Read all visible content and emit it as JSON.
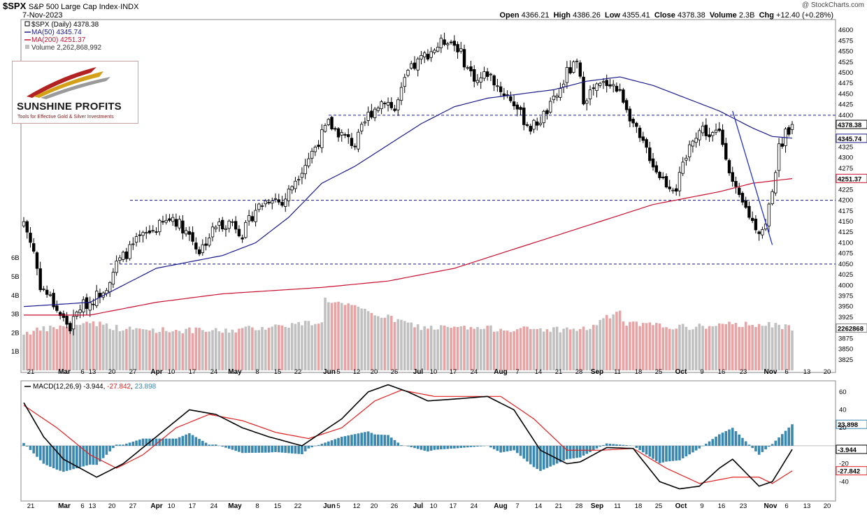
{
  "header": {
    "symbol": "$SPX",
    "name": "S&P 500 Large Cap Index",
    "exchange": "INDX",
    "date": "7-Nov-2023",
    "open_label": "Open",
    "open": "4366.21",
    "high_label": "High",
    "high": "4386.26",
    "low_label": "Low",
    "low": "4355.41",
    "close_label": "Close",
    "close": "4378.38",
    "volume_label": "Volume",
    "volume": "2.3B",
    "chg_label": "Chg",
    "chg": "+12.40 (+0.28%)",
    "watermark": "@ StockCharts.com"
  },
  "legend": {
    "price": "$SPX (Daily) 4378.38",
    "ma50": "MA(50) 4345.74",
    "ma200": "MA(200) 4251.37",
    "volume": "Volume 2,262,868,992"
  },
  "logo": {
    "name": "SUNSHINE PROFITS",
    "tagline": "Tools for Effective Gold & Silver Investments"
  },
  "macd_legend": {
    "label": "MACD(12,26,9)",
    "macd": "-3.944",
    "signal": "-27.842",
    "hist": "23.898"
  },
  "tags": {
    "close": "4378.38",
    "ma50": "4345.74",
    "ma200": "4251.37",
    "volume": "2262868",
    "hist": "23.898",
    "macd": "-3.944",
    "signal": "-27.842"
  },
  "colors": {
    "up": "#ffffff",
    "down": "#000000",
    "ma50": "#1a1a8c",
    "ma200": "#c8102e",
    "vol_up": "#c0c0c0",
    "vol_down": "#e8a4a4",
    "macd": "#000000",
    "signal": "#e02020",
    "hist": "#3a87b0",
    "level": "#1a1a8c",
    "trend": "#2233cc"
  },
  "chart_data": {
    "type": "candlestick",
    "title": "$SPX S&P 500 Large Cap Index",
    "period": "Daily",
    "ylim": [
      3800,
      4620
    ],
    "y_ticks": [
      3825,
      3850,
      3875,
      3900,
      3925,
      3950,
      3975,
      4000,
      4025,
      4050,
      4075,
      4100,
      4125,
      4150,
      4175,
      4200,
      4225,
      4250,
      4275,
      4300,
      4325,
      4350,
      4375,
      4400,
      4425,
      4450,
      4475,
      4500,
      4525,
      4550,
      4575,
      4600
    ],
    "volume_ticks": [
      "1B",
      "2B",
      "3B",
      "4B",
      "5B",
      "6B"
    ],
    "x_labels": [
      "21",
      "Mar",
      "6",
      "13",
      "20",
      "27",
      "Apr",
      "10",
      "17",
      "24",
      "May",
      "8",
      "15",
      "22",
      "Jun",
      "5",
      "12",
      "20",
      "26",
      "Jul",
      "10",
      "17",
      "24",
      "Aug",
      "7",
      "14",
      "21",
      "28",
      "Sep",
      "11",
      "18",
      "25",
      "Oct",
      "9",
      "16",
      "23",
      "Nov",
      "6",
      "13",
      "20"
    ],
    "horizontal_levels": [
      4400,
      4200,
      4050
    ],
    "anchors": {
      "close": [
        [
          0,
          4150
        ],
        [
          3,
          4080
        ],
        [
          5,
          4000
        ],
        [
          8,
          3970
        ],
        [
          11,
          3930
        ],
        [
          14,
          3900
        ],
        [
          17,
          3950
        ],
        [
          20,
          3960
        ],
        [
          25,
          4000
        ],
        [
          28,
          4050
        ],
        [
          35,
          4110
        ],
        [
          45,
          4160
        ],
        [
          50,
          4120
        ],
        [
          53,
          4080
        ],
        [
          58,
          4140
        ],
        [
          63,
          4150
        ],
        [
          66,
          4120
        ],
        [
          70,
          4180
        ],
        [
          75,
          4210
        ],
        [
          78,
          4190
        ],
        [
          82,
          4250
        ],
        [
          86,
          4300
        ],
        [
          92,
          4380
        ],
        [
          95,
          4360
        ],
        [
          100,
          4330
        ],
        [
          104,
          4400
        ],
        [
          109,
          4440
        ],
        [
          112,
          4410
        ],
        [
          116,
          4500
        ],
        [
          121,
          4540
        ],
        [
          128,
          4580
        ],
        [
          131,
          4560
        ],
        [
          134,
          4510
        ],
        [
          137,
          4480
        ],
        [
          140,
          4500
        ],
        [
          144,
          4460
        ],
        [
          148,
          4430
        ],
        [
          150,
          4400
        ],
        [
          153,
          4370
        ],
        [
          156,
          4390
        ],
        [
          159,
          4420
        ],
        [
          162,
          4460
        ],
        [
          164,
          4500
        ],
        [
          167,
          4520
        ],
        [
          169,
          4440
        ],
        [
          172,
          4460
        ],
        [
          177,
          4480
        ],
        [
          179,
          4460
        ],
        [
          181,
          4440
        ],
        [
          183,
          4400
        ],
        [
          186,
          4340
        ],
        [
          188,
          4320
        ],
        [
          191,
          4270
        ],
        [
          194,
          4240
        ],
        [
          197,
          4230
        ],
        [
          200,
          4300
        ],
        [
          202,
          4350
        ],
        [
          205,
          4370
        ],
        [
          207,
          4350
        ],
        [
          210,
          4360
        ],
        [
          212,
          4310
        ],
        [
          214,
          4240
        ],
        [
          216,
          4200
        ],
        [
          218,
          4180
        ],
        [
          220,
          4150
        ],
        [
          222,
          4130
        ],
        [
          224,
          4140
        ],
        [
          226,
          4230
        ],
        [
          228,
          4320
        ],
        [
          230,
          4360
        ],
        [
          232,
          4378
        ]
      ],
      "ma50": [
        [
          0,
          3950
        ],
        [
          20,
          3960
        ],
        [
          40,
          4040
        ],
        [
          60,
          4070
        ],
        [
          70,
          4100
        ],
        [
          80,
          4160
        ],
        [
          90,
          4240
        ],
        [
          100,
          4280
        ],
        [
          110,
          4330
        ],
        [
          120,
          4380
        ],
        [
          130,
          4420
        ],
        [
          140,
          4440
        ],
        [
          150,
          4450
        ],
        [
          160,
          4460
        ],
        [
          170,
          4480
        ],
        [
          180,
          4490
        ],
        [
          190,
          4470
        ],
        [
          200,
          4440
        ],
        [
          210,
          4410
        ],
        [
          220,
          4370
        ],
        [
          226,
          4350
        ],
        [
          232,
          4346
        ]
      ],
      "ma200": [
        [
          0,
          3930
        ],
        [
          20,
          3930
        ],
        [
          40,
          3960
        ],
        [
          60,
          3980
        ],
        [
          90,
          3995
        ],
        [
          110,
          4010
        ],
        [
          130,
          4040
        ],
        [
          150,
          4090
        ],
        [
          170,
          4140
        ],
        [
          190,
          4190
        ],
        [
          210,
          4220
        ],
        [
          220,
          4240
        ],
        [
          232,
          4251
        ]
      ],
      "volume": [
        [
          0,
          2.0
        ],
        [
          20,
          2.6
        ],
        [
          30,
          2.2
        ],
        [
          60,
          2.1
        ],
        [
          90,
          2.6
        ],
        [
          91,
          3.8
        ],
        [
          120,
          2.3
        ],
        [
          150,
          2.2
        ],
        [
          170,
          2.2
        ],
        [
          180,
          3.2
        ],
        [
          181,
          2.5
        ],
        [
          200,
          2.3
        ],
        [
          220,
          2.5
        ],
        [
          232,
          2.3
        ]
      ],
      "macd": [
        [
          0,
          48
        ],
        [
          6,
          10
        ],
        [
          12,
          -15
        ],
        [
          22,
          -35
        ],
        [
          30,
          -20
        ],
        [
          40,
          10
        ],
        [
          50,
          40
        ],
        [
          58,
          35
        ],
        [
          66,
          20
        ],
        [
          74,
          10
        ],
        [
          84,
          0
        ],
        [
          96,
          30
        ],
        [
          104,
          60
        ],
        [
          110,
          68
        ],
        [
          116,
          60
        ],
        [
          122,
          50
        ],
        [
          130,
          52
        ],
        [
          140,
          55
        ],
        [
          148,
          40
        ],
        [
          156,
          -5
        ],
        [
          164,
          -20
        ],
        [
          168,
          -18
        ],
        [
          176,
          -2
        ],
        [
          184,
          -3
        ],
        [
          192,
          -40
        ],
        [
          198,
          -48
        ],
        [
          204,
          -45
        ],
        [
          210,
          -25
        ],
        [
          214,
          -15
        ],
        [
          218,
          -30
        ],
        [
          222,
          -45
        ],
        [
          226,
          -40
        ],
        [
          232,
          -4
        ]
      ],
      "signal": [
        [
          0,
          45
        ],
        [
          10,
          20
        ],
        [
          20,
          -10
        ],
        [
          28,
          -25
        ],
        [
          36,
          -10
        ],
        [
          46,
          20
        ],
        [
          56,
          35
        ],
        [
          66,
          28
        ],
        [
          76,
          15
        ],
        [
          86,
          8
        ],
        [
          96,
          20
        ],
        [
          106,
          50
        ],
        [
          114,
          62
        ],
        [
          124,
          55
        ],
        [
          134,
          55
        ],
        [
          144,
          55
        ],
        [
          154,
          30
        ],
        [
          164,
          -5
        ],
        [
          174,
          -5
        ],
        [
          184,
          -3
        ],
        [
          194,
          -25
        ],
        [
          204,
          -42
        ],
        [
          214,
          -35
        ],
        [
          222,
          -35
        ],
        [
          226,
          -42
        ],
        [
          232,
          -28
        ]
      ]
    },
    "trendline": [
      [
        214,
        4410
      ],
      [
        226,
        4095
      ]
    ],
    "n_bars": 233,
    "ma50_last": 4345.74,
    "ma200_last": 4251.37,
    "volume_last_billion": 2.26,
    "macd_ylim": [
      -60,
      70
    ],
    "macd_ticks": [
      60,
      40,
      20,
      -20,
      -40
    ],
    "macd_last": -3.944,
    "signal_last": -27.842,
    "hist_last": 23.898
  }
}
